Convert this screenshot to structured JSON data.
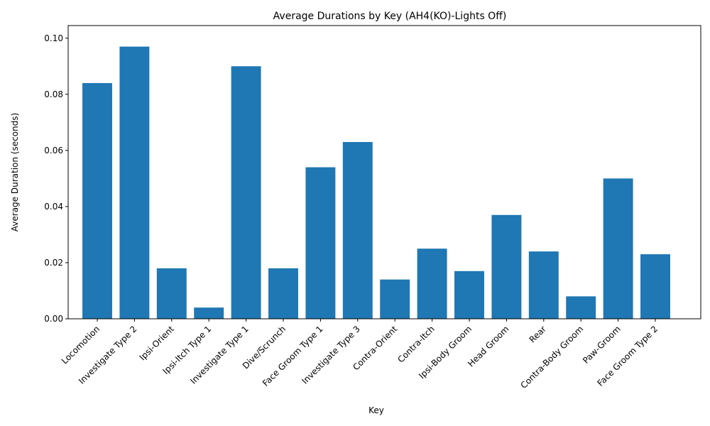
{
  "chart_data": {
    "type": "bar",
    "title": "Average Durations by Key (AH4(KO)-Lights Off)",
    "xlabel": "Key",
    "ylabel": "Average Duration (seconds)",
    "categories": [
      "Locomotion",
      "Investigate Type 2",
      "Ipsi-Orient",
      "Ipsi-Itch Type 1",
      "Investigate Type 1",
      "Dive/Scrunch",
      "Face Groom Type 1",
      "Investigate Type 3",
      "Contra-Orient",
      "Contra-Itch",
      "Ipsi-Body Groom",
      "Head Groom",
      "Rear",
      "Contra-Body Groom",
      "Paw-Groom",
      "Face Groom Type 2"
    ],
    "values": [
      0.084,
      0.097,
      0.018,
      0.004,
      0.09,
      0.018,
      0.054,
      0.063,
      0.014,
      0.025,
      0.017,
      0.037,
      0.024,
      0.008,
      0.05,
      0.023
    ],
    "ylim": [
      0,
      0.1045
    ],
    "yticks": [
      "0.00",
      "0.02",
      "0.04",
      "0.06",
      "0.08",
      "0.10"
    ],
    "bar_color": "#1f77b4",
    "grid": false,
    "legend": "none"
  }
}
